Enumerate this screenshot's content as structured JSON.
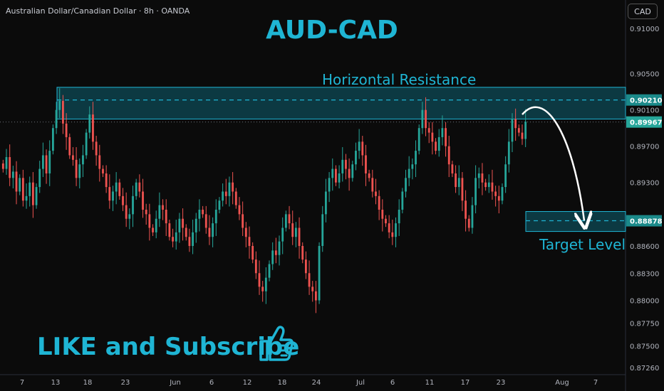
{
  "header": {
    "symbol_title": "Australian Dollar/Canadian Dollar · 8h · OANDA",
    "currency_button": "CAD"
  },
  "annotations": {
    "main_title": "AUD-CAD",
    "resistance_label": "Horizontal Resistance",
    "target_label": "Target Level",
    "cta": "LIKE and Subscribe"
  },
  "colors": {
    "accent": "#1fb5d4",
    "up": "#26a69a",
    "down": "#ef5350",
    "zone_fill": "#0e4a55",
    "badge": "#1b8a8a",
    "background": "#0b0b0b"
  },
  "icons": {
    "cta_icon": "thumbs-up-icon"
  },
  "chart_data": {
    "type": "candlestick",
    "instrument": "AUD/CAD",
    "y_axis": {
      "ticks": [
        "0.91000",
        "0.90500",
        "0.90100",
        "0.89700",
        "0.89300",
        "0.88600",
        "0.88300",
        "0.88000",
        "0.87750",
        "0.87500",
        "0.87260"
      ],
      "tick_values": [
        0.91,
        0.905,
        0.901,
        0.897,
        0.893,
        0.886,
        0.883,
        0.88,
        0.8775,
        0.875,
        0.8726
      ],
      "range": [
        0.8722,
        0.9125
      ]
    },
    "x_axis": {
      "ticks": [
        "7",
        "13",
        "18",
        "23",
        "Jun",
        "6",
        "12",
        "18",
        "24",
        "Jul",
        "6",
        "11",
        "17",
        "23",
        "Aug",
        "7"
      ]
    },
    "price_badges": [
      {
        "label": "0.90210",
        "value": 0.9021,
        "style": "zone"
      },
      {
        "label": "0.89967",
        "value": 0.89967,
        "style": "current"
      },
      {
        "label": "0.88878",
        "value": 0.88878,
        "style": "zone"
      }
    ],
    "resistance_zone": {
      "low": 0.9,
      "high": 0.9035,
      "level": 0.9021
    },
    "target_zone": {
      "low": 0.8876,
      "high": 0.8898,
      "level": 0.88878
    },
    "current_price": 0.89967,
    "closes": [
      0.8945,
      0.8958,
      0.8935,
      0.8942,
      0.892,
      0.8935,
      0.891,
      0.8915,
      0.893,
      0.8905,
      0.8925,
      0.8945,
      0.896,
      0.894,
      0.8965,
      0.899,
      0.901,
      0.902,
      0.8995,
      0.898,
      0.896,
      0.8955,
      0.8935,
      0.895,
      0.896,
      0.8985,
      0.9005,
      0.8975,
      0.896,
      0.8945,
      0.894,
      0.8925,
      0.891,
      0.892,
      0.893,
      0.8915,
      0.8905,
      0.889,
      0.8895,
      0.8915,
      0.893,
      0.892,
      0.89,
      0.8895,
      0.888,
      0.8875,
      0.889,
      0.8905,
      0.89,
      0.8885,
      0.887,
      0.8865,
      0.8875,
      0.889,
      0.888,
      0.887,
      0.886,
      0.8875,
      0.889,
      0.89,
      0.8895,
      0.888,
      0.887,
      0.8885,
      0.89,
      0.891,
      0.892,
      0.8915,
      0.893,
      0.892,
      0.8905,
      0.8895,
      0.888,
      0.887,
      0.886,
      0.8845,
      0.883,
      0.8815,
      0.881,
      0.8825,
      0.884,
      0.8855,
      0.885,
      0.8865,
      0.888,
      0.8895,
      0.8885,
      0.887,
      0.888,
      0.886,
      0.8845,
      0.883,
      0.8815,
      0.881,
      0.88,
      0.886,
      0.8895,
      0.892,
      0.8935,
      0.8945,
      0.893,
      0.894,
      0.8955,
      0.8945,
      0.8935,
      0.895,
      0.8965,
      0.8975,
      0.896,
      0.894,
      0.8935,
      0.892,
      0.8915,
      0.89,
      0.889,
      0.8885,
      0.8875,
      0.887,
      0.8885,
      0.89,
      0.892,
      0.8935,
      0.8945,
      0.895,
      0.8965,
      0.899,
      0.901,
      0.899,
      0.8985,
      0.8975,
      0.8965,
      0.898,
      0.899,
      0.897,
      0.895,
      0.894,
      0.8925,
      0.8935,
      0.891,
      0.889,
      0.888,
      0.8905,
      0.8935,
      0.894,
      0.893,
      0.8925,
      0.893,
      0.892,
      0.8915,
      0.891,
      0.8925,
      0.895,
      0.8975,
      0.9,
      0.899,
      0.8985,
      0.8978,
      0.8997
    ],
    "projection": {
      "from": 0.9005,
      "to": 0.8888
    }
  }
}
